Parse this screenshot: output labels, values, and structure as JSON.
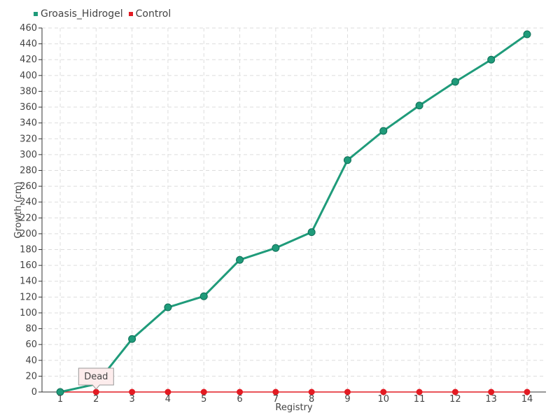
{
  "colors": {
    "primary": "#1f9b7a",
    "primary_stroke": "#0e6f57",
    "control": "#e31b23",
    "grid": "#dddddd",
    "axis": "#333333",
    "tooltip_fill": "#fdecec",
    "tooltip_border": "#999999"
  },
  "legend": {
    "items": [
      {
        "name": "Groasis_Hidrogel",
        "color": "#1f9b7a"
      },
      {
        "name": "Control",
        "color": "#e31b23"
      }
    ]
  },
  "tooltip": {
    "text": "Dead",
    "category": "2"
  },
  "chart_data": {
    "type": "line",
    "categories": [
      "1",
      "2",
      "3",
      "4",
      "5",
      "6",
      "7",
      "8",
      "9",
      "10",
      "11",
      "12",
      "13",
      "14"
    ],
    "series": [
      {
        "name": "Groasis_Hidrogel",
        "values": [
          0,
          10,
          67,
          107,
          121,
          167,
          182,
          202,
          293,
          330,
          362,
          392,
          420,
          452
        ]
      },
      {
        "name": "Control",
        "values": [
          0,
          0,
          0,
          0,
          0,
          0,
          0,
          0,
          0,
          0,
          0,
          0,
          0,
          0
        ]
      }
    ],
    "xlabel": "Registry",
    "ylabel": "Growth (cm)",
    "ylim": [
      0,
      460
    ],
    "ytick_step": 20,
    "grid": true,
    "legend_position": "top-left"
  }
}
